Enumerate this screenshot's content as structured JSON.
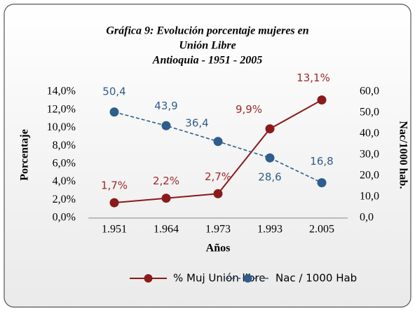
{
  "chart_data": {
    "type": "line",
    "title": [
      "Gráfica 9: Evolución porcentaje mujeres en",
      "Unión Libre",
      "Antioquia - 1951 - 2005"
    ],
    "x_label": "Años",
    "y_label": "Porcentaje",
    "y2_label": "Nac/1000 hab.",
    "categories": [
      "1.951",
      "1.964",
      "1.973",
      "1.993",
      "2.005"
    ],
    "series": [
      {
        "name": "% Muj Unión libre",
        "color": "#8b1a1a",
        "label_color": "#a0282a",
        "dashed": false,
        "values": [
          1.7,
          2.2,
          2.7,
          9.9,
          13.1
        ],
        "value_labels": [
          "1,7%",
          "2,2%",
          "2,7%",
          "9,9%",
          "13,1%"
        ]
      },
      {
        "name": "Nac / 1000 Hab",
        "color": "#2f5d8c",
        "label_color": "#2f5d8c",
        "dashed": true,
        "axis": "y2",
        "values": [
          50.4,
          43.9,
          36.4,
          28.6,
          16.8
        ],
        "value_labels": [
          "50,4",
          "43,9",
          "36,4",
          "28,6",
          "16,8"
        ]
      }
    ],
    "ylim": [
      0,
      14
    ],
    "yticks": [
      {
        "value": 0,
        "label": "0,0%"
      },
      {
        "value": 2,
        "label": "2,0%"
      },
      {
        "value": 4,
        "label": "4,0%"
      },
      {
        "value": 6,
        "label": "6,0%"
      },
      {
        "value": 8,
        "label": "8,0%"
      },
      {
        "value": 10,
        "label": "10,0%"
      },
      {
        "value": 12,
        "label": "12,0%"
      },
      {
        "value": 14,
        "label": "14,0%"
      }
    ],
    "y2lim": [
      0,
      60
    ],
    "y2ticks": [
      {
        "value": 0,
        "label": "0,0"
      },
      {
        "value": 10,
        "label": "10,0"
      },
      {
        "value": 20,
        "label": "20,0"
      },
      {
        "value": 30,
        "label": "30,0"
      },
      {
        "value": 40,
        "label": "40,0"
      },
      {
        "value": 50,
        "label": "50,0"
      },
      {
        "value": 60,
        "label": "60,0"
      }
    ],
    "legend": "bottom"
  }
}
